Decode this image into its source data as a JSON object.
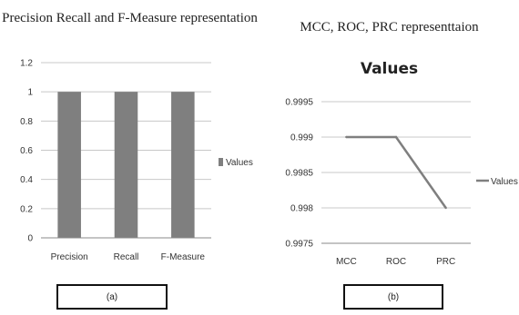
{
  "panels": [
    {
      "title": "Precision Recall and F-Measure representation",
      "caption": "(a)"
    },
    {
      "title": "MCC, ROC, PRC representtaion",
      "caption": "(b)"
    }
  ],
  "chart_data": [
    {
      "type": "bar",
      "categories": [
        "Precision",
        "Recall",
        "F-Measure"
      ],
      "series": [
        {
          "name": "Values",
          "values": [
            1,
            1,
            1
          ]
        }
      ],
      "ylim": [
        0,
        1.2
      ],
      "yticks": [
        "0",
        "0.2",
        "0.4",
        "0.6",
        "0.8",
        "1",
        "1.2"
      ],
      "grid": true,
      "legend": "right",
      "bar_color": "#7f7f7f"
    },
    {
      "type": "line",
      "title": "Values",
      "categories": [
        "MCC",
        "ROC",
        "PRC"
      ],
      "series": [
        {
          "name": "Values",
          "values": [
            0.999,
            0.999,
            0.998
          ]
        }
      ],
      "ylim": [
        0.9975,
        0.9995
      ],
      "yticks": [
        "0.9975",
        "0.998",
        "0.9985",
        "0.999",
        "0.9995"
      ],
      "grid": true,
      "legend": "right",
      "line_color": "#7f7f7f"
    }
  ]
}
